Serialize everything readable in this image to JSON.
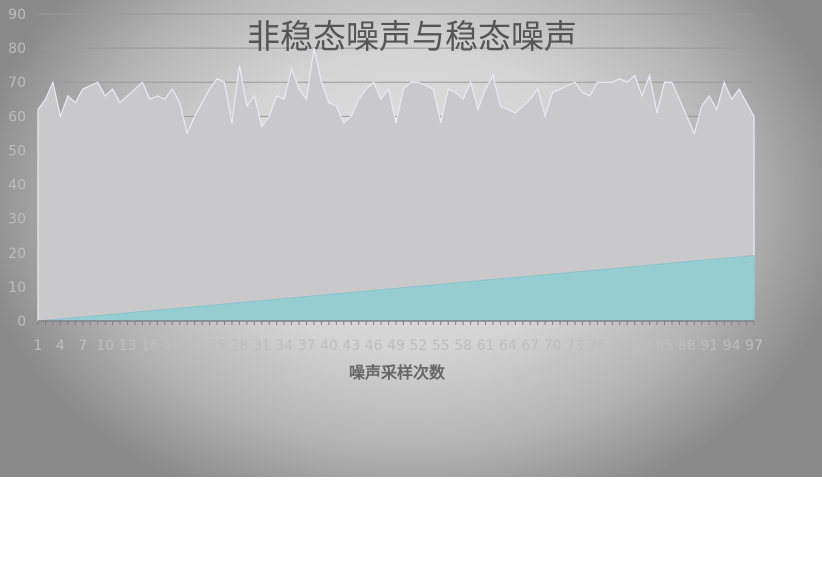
{
  "chart_data": {
    "type": "area",
    "title": "非稳态噪声与稳态噪声",
    "xlabel": "噪声采样次数",
    "ylabel": "",
    "ylim": [
      0,
      90
    ],
    "yticks": [
      0,
      10,
      20,
      30,
      40,
      50,
      60,
      70,
      80,
      90
    ],
    "grid": true,
    "x_tick_labels": [
      "1",
      "4",
      "7",
      "10",
      "13",
      "16",
      "19",
      "22",
      "25",
      "28",
      "31",
      "34",
      "37",
      "40",
      "43",
      "46",
      "49",
      "52",
      "55",
      "58",
      "61",
      "64",
      "67",
      "70",
      "73",
      "76",
      "79",
      "82",
      "85",
      "88",
      "91",
      "94",
      "97"
    ],
    "x": [
      1,
      2,
      3,
      4,
      5,
      6,
      7,
      8,
      9,
      10,
      11,
      12,
      13,
      14,
      15,
      16,
      17,
      18,
      19,
      20,
      21,
      22,
      23,
      24,
      25,
      26,
      27,
      28,
      29,
      30,
      31,
      32,
      33,
      34,
      35,
      36,
      37,
      38,
      39,
      40,
      41,
      42,
      43,
      44,
      45,
      46,
      47,
      48,
      49,
      50,
      51,
      52,
      53,
      54,
      55,
      56,
      57,
      58,
      59,
      60,
      61,
      62,
      63,
      64,
      65,
      66,
      67,
      68,
      69,
      70,
      71,
      72,
      73,
      74,
      75,
      76,
      77,
      78,
      79,
      80,
      81,
      82,
      83,
      84,
      85,
      86,
      87,
      88,
      89,
      90,
      91,
      92,
      93,
      94,
      95,
      96,
      97
    ],
    "series": [
      {
        "color": "#c9c9cc",
        "values": [
          62,
          65,
          70,
          60,
          66,
          64,
          68,
          69,
          70,
          66,
          68,
          64,
          66,
          68,
          70,
          65,
          66,
          65,
          68,
          64,
          55,
          60,
          64,
          68,
          71,
          70,
          58,
          75,
          63,
          66,
          57,
          60,
          66,
          65,
          74,
          68,
          65,
          80,
          70,
          64,
          63,
          58,
          60,
          65,
          68,
          70,
          65,
          68,
          58,
          68,
          70,
          70,
          69,
          68,
          58,
          68,
          67,
          65,
          70,
          62,
          68,
          72,
          63,
          62,
          61,
          63,
          65,
          68,
          60,
          67,
          68,
          69,
          70,
          67,
          66,
          70,
          70,
          70,
          71,
          70,
          72,
          66,
          72,
          61,
          70,
          70,
          65,
          60,
          55,
          63,
          66,
          62,
          70,
          65,
          68,
          64,
          60
        ]
      },
      {
        "color": "#95cdd0",
        "values": [
          0.0,
          0.2,
          0.4,
          0.6,
          0.8,
          1.0,
          1.2,
          1.4,
          1.6,
          1.8,
          2.0,
          2.2,
          2.4,
          2.6,
          2.8,
          3.0,
          3.2,
          3.4,
          3.6,
          3.8,
          4.0,
          4.2,
          4.4,
          4.6,
          4.8,
          5.0,
          5.2,
          5.4,
          5.6,
          5.8,
          6.0,
          6.2,
          6.4,
          6.6,
          6.8,
          7.0,
          7.2,
          7.4,
          7.6,
          7.8,
          8.0,
          8.2,
          8.4,
          8.6,
          8.8,
          9.0,
          9.2,
          9.4,
          9.6,
          9.8,
          10.0,
          10.2,
          10.4,
          10.6,
          10.8,
          11.0,
          11.2,
          11.4,
          11.6,
          11.8,
          12.0,
          12.2,
          12.4,
          12.6,
          12.8,
          13.0,
          13.2,
          13.4,
          13.6,
          13.8,
          14.0,
          14.2,
          14.4,
          14.6,
          14.8,
          15.0,
          15.2,
          15.4,
          15.6,
          15.8,
          16.0,
          16.2,
          16.4,
          16.6,
          16.8,
          17.0,
          17.2,
          17.4,
          17.6,
          17.8,
          18.0,
          18.2,
          18.4,
          18.6,
          18.8,
          19.0,
          19.2
        ]
      }
    ]
  }
}
